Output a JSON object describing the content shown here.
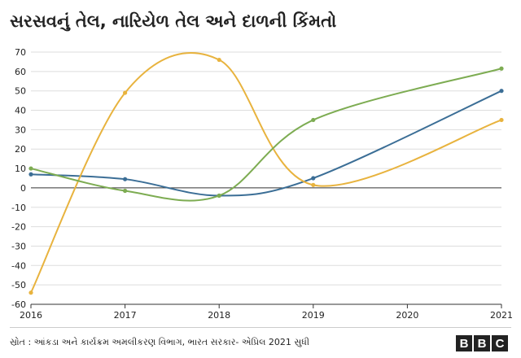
{
  "chart_data": {
    "type": "line",
    "title": "સરસવનું તેલ, નારિયેળ તેલ અને દાળની કિંમતો",
    "x": [
      2016,
      2017,
      2018,
      2019,
      2020,
      2021
    ],
    "ylim": [
      -60,
      70
    ],
    "yticks": [
      70,
      60,
      50,
      40,
      30,
      20,
      10,
      0,
      -10,
      -20,
      -30,
      -40,
      -50,
      -60
    ],
    "xticks": [
      "2016",
      "2017",
      "2018",
      "2019",
      "2020",
      "2021"
    ],
    "grid": true,
    "series": [
      {
        "color": "#3b6e96",
        "values": [
          7,
          4.5,
          -4,
          5,
          null,
          50
        ]
      },
      {
        "color": "#e8b33e",
        "values": [
          -54,
          49,
          66,
          1.5,
          null,
          35
        ]
      },
      {
        "color": "#7dac52",
        "values": [
          10,
          -1.5,
          -4,
          35,
          null,
          61.5
        ]
      }
    ]
  },
  "footer": {
    "source": "સ્રોત : આંકડા અને કાર્યક્રમ અમલીકરણ વિભાગ, ભારત સરકાર- એપ્રિલ 2021 સુધી",
    "logo": [
      "B",
      "B",
      "C"
    ]
  }
}
